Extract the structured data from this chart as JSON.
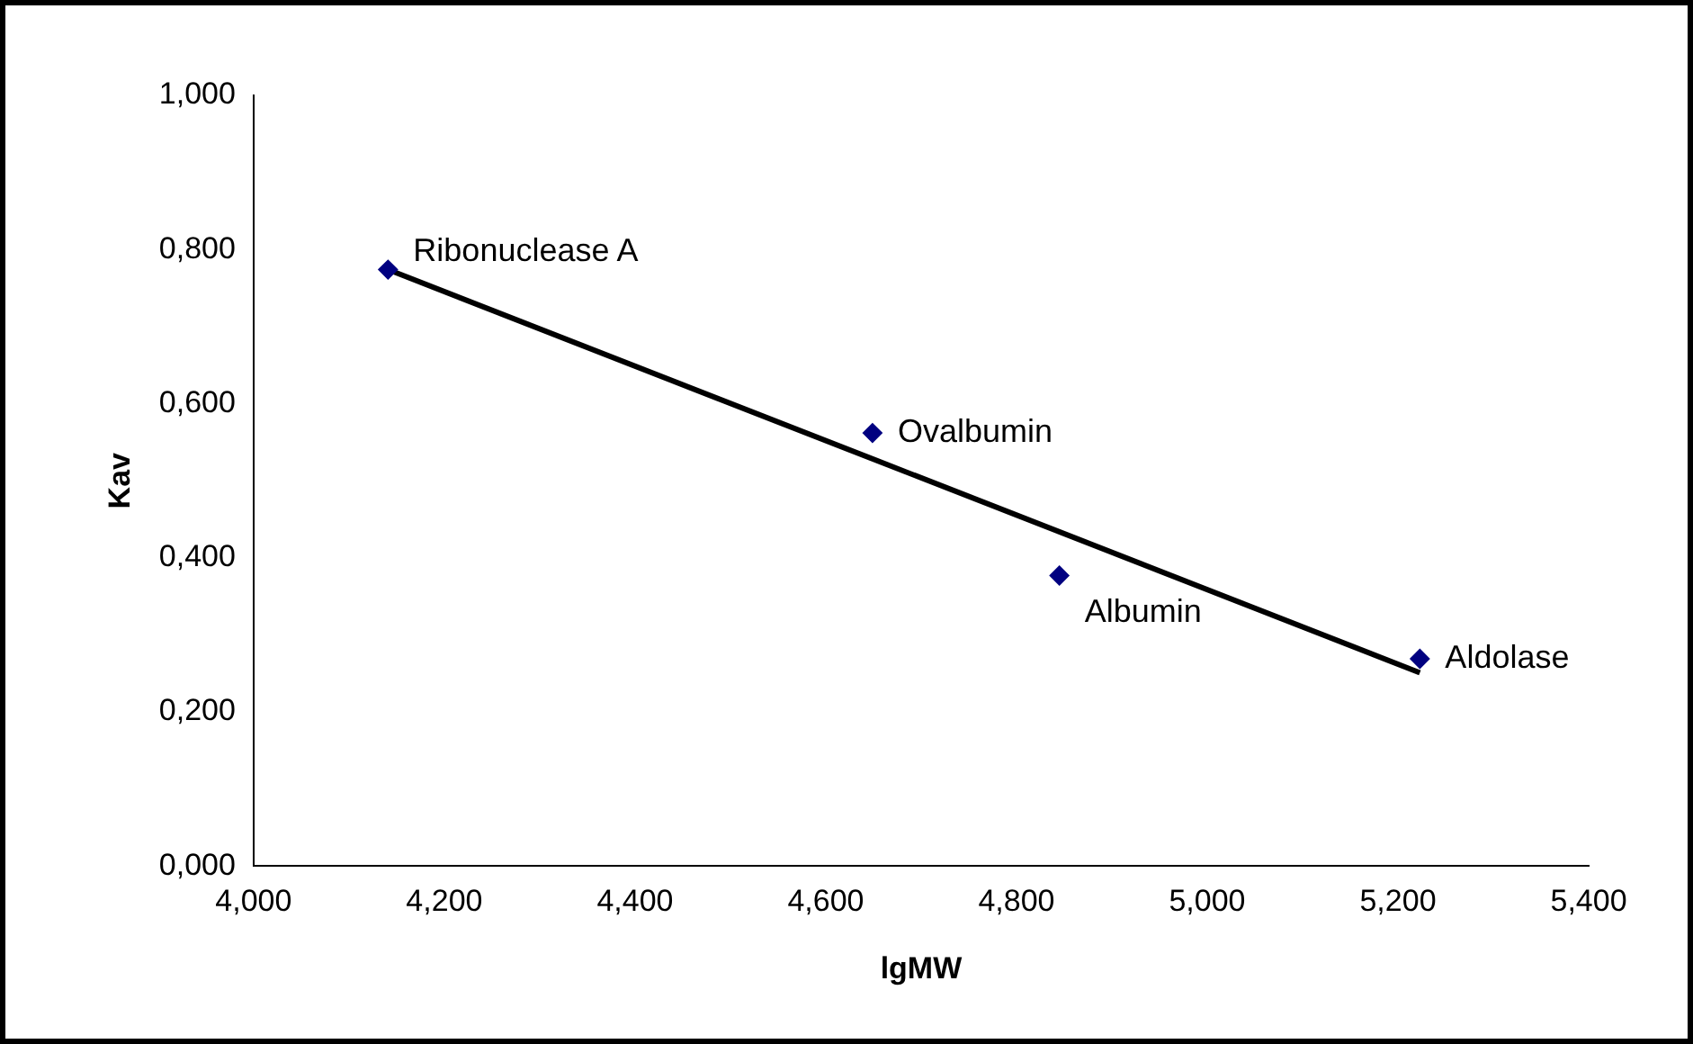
{
  "chart_data": {
    "type": "scatter",
    "xlabel": "lgMW",
    "ylabel": "Kav",
    "series": [
      {
        "type": "scatter",
        "marker": "diamond",
        "color": "#000080",
        "x": [
          4.141,
          4.649,
          4.845,
          5.223
        ],
        "values": [
          0.774,
          0.562,
          0.377,
          0.269
        ]
      },
      {
        "type": "line",
        "color": "#000000",
        "x": [
          4.141,
          5.223
        ],
        "values": [
          0.774,
          0.251
        ]
      }
    ],
    "xlim": [
      4,
      5.4
    ],
    "xticks": [
      {
        "value": 4,
        "label": "4,000"
      },
      {
        "value": 4.2,
        "label": "4,200"
      },
      {
        "value": 4.4,
        "label": "4,400"
      },
      {
        "value": 4.6,
        "label": "4,600"
      },
      {
        "value": 4.8,
        "label": "4,800"
      },
      {
        "value": 5,
        "label": "5,000"
      },
      {
        "value": 5.2,
        "label": "5,200"
      },
      {
        "value": 5.4,
        "label": "5,400"
      }
    ],
    "ylim": [
      0,
      1
    ],
    "yticks": [
      {
        "value": 0,
        "label": "0,000"
      },
      {
        "value": 0.2,
        "label": "0,200"
      },
      {
        "value": 0.4,
        "label": "0,400"
      },
      {
        "value": 0.6,
        "label": "0,600"
      },
      {
        "value": 0.8,
        "label": "0,800"
      },
      {
        "value": 1,
        "label": "1,000"
      }
    ],
    "annotations": [
      {
        "text": "Ribonuclease A",
        "x": 4.141,
        "y": 0.774
      },
      {
        "text": "Ovalbumin",
        "x": 4.649,
        "y": 0.562
      },
      {
        "text": "Albumin",
        "x": 4.845,
        "y": 0.377
      },
      {
        "text": "Aldolase",
        "x": 5.223,
        "y": 0.269
      }
    ],
    "grid": false,
    "legend": false
  }
}
